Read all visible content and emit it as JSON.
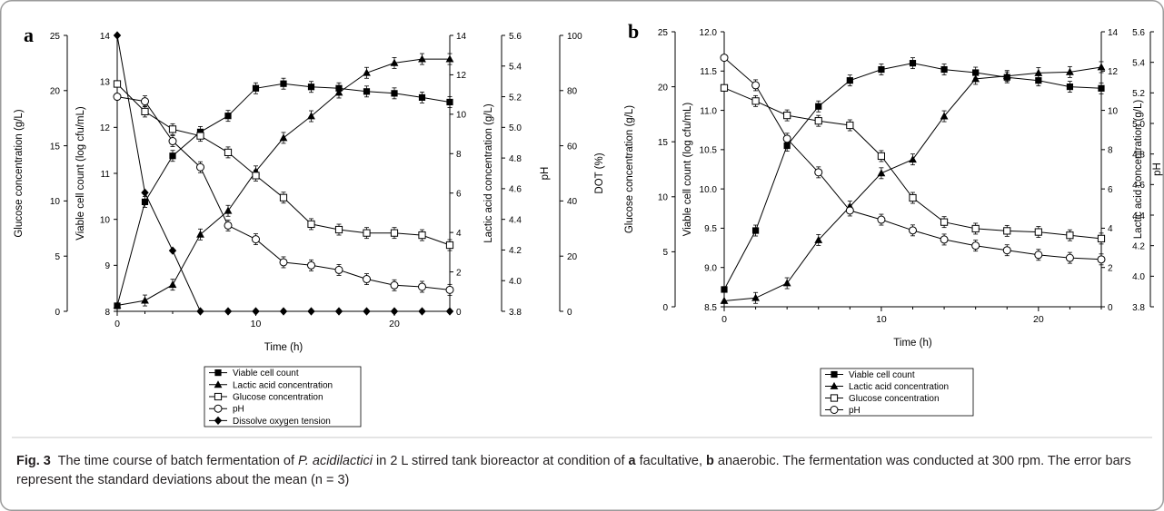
{
  "chart_data": [
    {
      "panel": "a",
      "type": "line",
      "xlabel": "Time (h)",
      "xlim": [
        0,
        24
      ],
      "x_ticks": [
        0,
        10,
        20
      ],
      "axes": [
        {
          "id": "glucose",
          "label": "Glucose concentration (g/L)",
          "lim": [
            0,
            25
          ],
          "ticks": [
            0,
            5,
            10,
            15,
            20,
            25
          ]
        },
        {
          "id": "viable",
          "label": "Viable cell count (log cfu/mL)",
          "lim": [
            8,
            14
          ],
          "ticks": [
            8,
            9,
            10,
            11,
            12,
            13,
            14
          ]
        },
        {
          "id": "lactic",
          "label": "Lactic acid concentration (g/L)",
          "lim": [
            0,
            14
          ],
          "ticks": [
            0,
            2,
            4,
            6,
            8,
            10,
            12,
            14
          ]
        },
        {
          "id": "ph",
          "label": "pH",
          "lim": [
            3.8,
            5.6
          ],
          "ticks": [
            "3.8",
            "4.0",
            "4.2",
            "4.4",
            "4.6",
            "4.8",
            "5.0",
            "5.2",
            "5.4",
            "5.6"
          ]
        },
        {
          "id": "dot",
          "label": "DOT (%)",
          "lim": [
            0,
            100
          ],
          "ticks": [
            0,
            20,
            40,
            60,
            80,
            100
          ]
        }
      ],
      "series": [
        {
          "name": "Viable cell count",
          "axis": "viable",
          "marker": "square-filled",
          "x": [
            0,
            2,
            4,
            6,
            8,
            10,
            12,
            14,
            16,
            18,
            20,
            22,
            24
          ],
          "y": [
            8.12,
            10.38,
            11.38,
            11.9,
            12.25,
            12.85,
            12.95,
            12.88,
            12.85,
            12.78,
            12.74,
            12.65,
            12.55
          ]
        },
        {
          "name": "Lactic acid concentration",
          "axis": "lactic",
          "marker": "triangle-filled",
          "x": [
            0,
            2,
            4,
            6,
            8,
            10,
            12,
            14,
            16,
            18,
            20,
            22,
            24
          ],
          "y": [
            0.3,
            0.55,
            1.35,
            3.9,
            5.1,
            7.1,
            8.8,
            9.9,
            11.1,
            12.1,
            12.6,
            12.8,
            12.8
          ]
        },
        {
          "name": "Glucose concentration",
          "axis": "glucose",
          "marker": "square-open",
          "x": [
            0,
            2,
            4,
            6,
            8,
            10,
            12,
            14,
            16,
            18,
            20,
            22,
            24
          ],
          "y": [
            20.6,
            18.1,
            16.5,
            15.9,
            14.4,
            12.3,
            10.3,
            7.9,
            7.4,
            7.1,
            7.1,
            6.9,
            6.0
          ]
        },
        {
          "name": "pH",
          "axis": "ph",
          "marker": "circle-open",
          "x": [
            0,
            2,
            4,
            6,
            8,
            10,
            12,
            14,
            16,
            18,
            20,
            22,
            24
          ],
          "y": [
            5.2,
            5.17,
            4.91,
            4.74,
            4.36,
            4.27,
            4.12,
            4.1,
            4.07,
            4.01,
            3.97,
            3.96,
            3.94
          ]
        },
        {
          "name": "Dissolve oxygen tension",
          "axis": "dot",
          "marker": "diamond-filled",
          "x": [
            0,
            2,
            4,
            6,
            8,
            10,
            12,
            14,
            16,
            18,
            20,
            22,
            24
          ],
          "y": [
            100,
            43,
            22,
            0,
            0,
            0,
            0,
            0,
            0,
            0,
            0,
            0,
            0
          ]
        }
      ]
    },
    {
      "panel": "b",
      "type": "line",
      "xlabel": "Time (h)",
      "xlim": [
        0,
        24
      ],
      "x_ticks": [
        0,
        10,
        20
      ],
      "axes": [
        {
          "id": "glucose",
          "label": "Glucose concentration (g/L)",
          "lim": [
            0,
            25
          ],
          "ticks": [
            0,
            5,
            10,
            15,
            20,
            25
          ]
        },
        {
          "id": "viable",
          "label": "Viable cell count (log cfu/mL)",
          "lim": [
            8.5,
            12.0
          ],
          "ticks": [
            "8.5",
            "9.0",
            "9.5",
            "10.0",
            "10.5",
            "11.0",
            "11.5",
            "12.0"
          ]
        },
        {
          "id": "lactic",
          "label": "Lactic acid concentration (g/L)",
          "lim": [
            0,
            14
          ],
          "ticks": [
            0,
            2,
            4,
            6,
            8,
            10,
            12,
            14
          ]
        },
        {
          "id": "ph",
          "label": "pH",
          "lim": [
            3.8,
            5.6
          ],
          "ticks": [
            "3.8",
            "4.0",
            "4.2",
            "4.4",
            "4.6",
            "4.8",
            "5.0",
            "5.2",
            "5.4",
            "5.6"
          ]
        }
      ],
      "series": [
        {
          "name": "Viable cell count",
          "axis": "viable",
          "marker": "square-filled",
          "x": [
            0,
            2,
            4,
            6,
            8,
            10,
            12,
            14,
            16,
            18,
            20,
            22,
            24
          ],
          "y": [
            8.72,
            9.47,
            10.55,
            11.05,
            11.38,
            11.52,
            11.6,
            11.52,
            11.48,
            11.42,
            11.38,
            11.3,
            11.28
          ]
        },
        {
          "name": "Lactic acid concentration",
          "axis": "lactic",
          "marker": "triangle-filled",
          "x": [
            0,
            2,
            4,
            6,
            8,
            10,
            12,
            14,
            16,
            18,
            20,
            22,
            24
          ],
          "y": [
            0.3,
            0.45,
            1.2,
            3.4,
            5.1,
            6.8,
            7.5,
            9.7,
            11.6,
            11.75,
            11.9,
            11.95,
            12.2
          ]
        },
        {
          "name": "Glucose concentration",
          "axis": "glucose",
          "marker": "square-open",
          "x": [
            0,
            2,
            4,
            6,
            8,
            10,
            12,
            14,
            16,
            18,
            20,
            22,
            24
          ],
          "y": [
            19.9,
            18.7,
            17.4,
            16.9,
            16.5,
            13.7,
            9.9,
            7.7,
            7.1,
            6.9,
            6.8,
            6.5,
            6.2
          ]
        },
        {
          "name": "pH",
          "axis": "ph",
          "marker": "circle-open",
          "x": [
            0,
            2,
            4,
            6,
            8,
            10,
            12,
            14,
            16,
            18,
            20,
            22,
            24
          ],
          "y": [
            5.43,
            5.25,
            4.9,
            4.68,
            4.43,
            4.37,
            4.3,
            4.24,
            4.2,
            4.17,
            4.14,
            4.12,
            4.11
          ]
        }
      ]
    }
  ],
  "caption": {
    "fig_label": "Fig. 3",
    "part1": "The time course of batch fermentation of ",
    "organism": "P. acidilactici",
    "part2": " in 2 L stirred tank bioreactor at condition of ",
    "label_a": "a",
    "cond_a": " facultative, ",
    "label_b": "b",
    "cond_b": " anaerobic. The fermentation was conducted at 300 rpm. The error bars represent the standard deviations about the mean (n = 3)"
  },
  "colors": {
    "frame": "#9b9b9b",
    "ink": "#000000",
    "caption_text": "#231f20"
  }
}
